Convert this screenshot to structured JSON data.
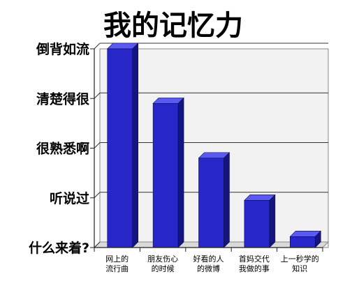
{
  "chart_data": {
    "type": "bar",
    "title": "我的记忆力",
    "xlabel": "",
    "ylabel": "",
    "ylim": [
      0,
      4
    ],
    "y_tick_labels": [
      "什么来着?",
      "听说过",
      "很熟悉啊",
      "清楚得很",
      "倒背如流"
    ],
    "categories": [
      [
        "网上的",
        "流行曲"
      ],
      [
        "朋友伤心",
        "的时候"
      ],
      [
        "好看的人",
        "的微博"
      ],
      [
        "首妈交代",
        "我做的事"
      ],
      [
        "上一秒学的",
        "知识"
      ]
    ],
    "values": [
      4.0,
      2.9,
      1.8,
      0.95,
      0.22
    ],
    "grid": true,
    "legend": "none",
    "colors": {
      "bar_front": "#2727c9",
      "bar_side": "#15157e",
      "bar_top": "#5a5af0",
      "plot_bg": "#f2f2f2",
      "floor": "#d9d9d9"
    }
  }
}
